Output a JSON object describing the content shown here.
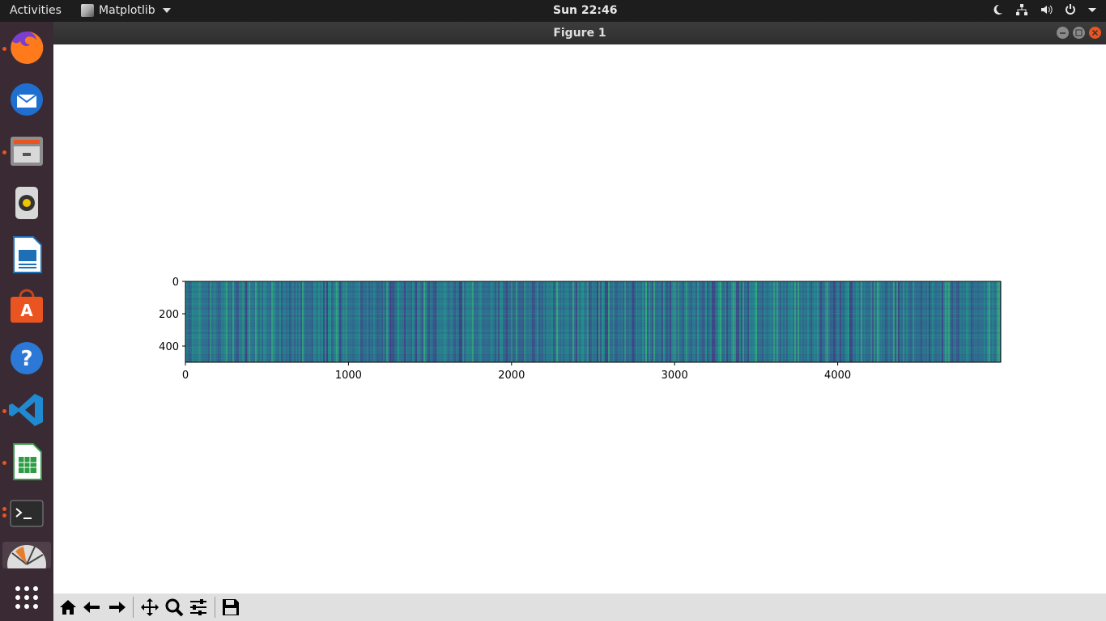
{
  "topbar": {
    "activities": "Activities",
    "app_name": "Matplotlib",
    "clock": "Sun 22:46",
    "tray_icons": [
      "moon-icon",
      "network-icon",
      "volume-icon",
      "power-icon",
      "chevron-down-icon"
    ]
  },
  "dock": {
    "items": [
      "firefox-icon",
      "thunderbird-icon",
      "files-icon",
      "rhythmbox-icon",
      "writer-icon",
      "software-icon",
      "help-icon",
      "vscode-icon",
      "calc-icon",
      "terminal-icon",
      "matplotlib-icon",
      "app-grid-icon"
    ]
  },
  "window": {
    "title": "Figure 1"
  },
  "chart_data": {
    "type": "heatmap",
    "title": "",
    "xlabel": "",
    "ylabel": "",
    "xlim": [
      0,
      5000
    ],
    "ylim": [
      500,
      0
    ],
    "x_ticks": [
      0,
      1000,
      2000,
      3000,
      4000
    ],
    "y_ticks": [
      0,
      200,
      400
    ],
    "x_tick_labels": [
      "0",
      "1000",
      "2000",
      "3000",
      "4000"
    ],
    "y_tick_labels": [
      "0",
      "200",
      "400"
    ],
    "colormap": "viridis",
    "colors": {
      "base": "#2f6c8e",
      "dark": "#3b3f8c",
      "bright": "#22a884"
    }
  },
  "toolbar": {
    "buttons": [
      "home-icon",
      "back-icon",
      "forward-icon",
      "pan-icon",
      "zoom-icon",
      "configure-icon",
      "save-icon"
    ]
  }
}
